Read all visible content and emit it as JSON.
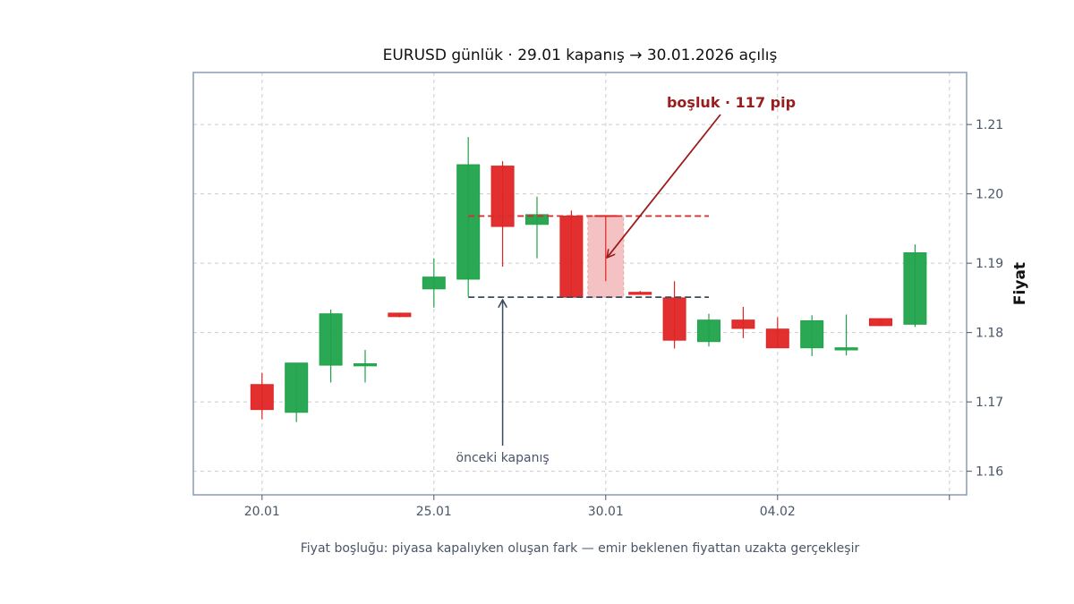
{
  "chart_data": {
    "type": "candlestick",
    "title": "EURUSD günlük · 29.01 kapanış → 30.01.2026 açılış",
    "ylabel": "Fiyat",
    "caption": "Fiyat boşluğu: piyasa kapalıyken oluşan fark — emir beklenen fiyattan uzakta gerçekleşir",
    "ylim": [
      1.1566,
      1.2175
    ],
    "yticks": [
      "1.16",
      "1.17",
      "1.18",
      "1.19",
      "1.20",
      "1.21"
    ],
    "xlim": [
      -1,
      21.5
    ],
    "xticks": [
      {
        "x": 1,
        "label": "20.01"
      },
      {
        "x": 6,
        "label": "25.01"
      },
      {
        "x": 11,
        "label": "30.01"
      },
      {
        "x": 16,
        "label": "04.02"
      },
      {
        "x": 21,
        "label": ""
      }
    ],
    "up_color": "#1fa34a",
    "down_color": "#e02424",
    "candles": [
      {
        "x": 1,
        "open": 1.1725,
        "high": 1.1742,
        "low": 1.1675,
        "close": 1.1689
      },
      {
        "x": 2,
        "open": 1.1685,
        "high": 1.1756,
        "low": 1.1671,
        "close": 1.1756
      },
      {
        "x": 3,
        "open": 1.1753,
        "high": 1.1833,
        "low": 1.1728,
        "close": 1.1827
      },
      {
        "x": 4,
        "open": 1.1752,
        "high": 1.1775,
        "low": 1.1728,
        "close": 1.1755
      },
      {
        "x": 5,
        "open": 1.1828,
        "high": 1.1828,
        "low": 1.1822,
        "close": 1.1823
      },
      {
        "x": 6,
        "open": 1.1863,
        "high": 1.1907,
        "low": 1.1836,
        "close": 1.188
      },
      {
        "x": 7,
        "open": 1.1877,
        "high": 1.2082,
        "low": 1.1852,
        "close": 1.2042
      },
      {
        "x": 8,
        "open": 1.204,
        "high": 1.2047,
        "low": 1.1895,
        "close": 1.1953
      },
      {
        "x": 9,
        "open": 1.1956,
        "high": 1.1996,
        "low": 1.1907,
        "close": 1.197
      },
      {
        "x": 10,
        "open": 1.1968,
        "high": 1.1976,
        "low": 1.185,
        "close": 1.1851
      },
      {
        "x": 11,
        "open": 1.1968,
        "high": 1.1968,
        "low": 1.1874,
        "close": 1.1966,
        "gap_day": true
      },
      {
        "x": 12,
        "open": 1.1858,
        "high": 1.186,
        "low": 1.1855,
        "close": 1.1855
      },
      {
        "x": 13,
        "open": 1.185,
        "high": 1.1874,
        "low": 1.1777,
        "close": 1.1789
      },
      {
        "x": 14,
        "open": 1.1787,
        "high": 1.1827,
        "low": 1.178,
        "close": 1.1818
      },
      {
        "x": 15,
        "open": 1.1818,
        "high": 1.1837,
        "low": 1.1792,
        "close": 1.1806
      },
      {
        "x": 16,
        "open": 1.1805,
        "high": 1.1822,
        "low": 1.1778,
        "close": 1.1778
      },
      {
        "x": 17,
        "open": 1.1778,
        "high": 1.1825,
        "low": 1.1766,
        "close": 1.1817
      },
      {
        "x": 18,
        "open": 1.1775,
        "high": 1.1826,
        "low": 1.1767,
        "close": 1.1778
      },
      {
        "x": 19,
        "open": 1.182,
        "high": 1.182,
        "low": 1.181,
        "close": 1.181
      },
      {
        "x": 20,
        "open": 1.1812,
        "high": 1.1927,
        "low": 1.1808,
        "close": 1.1915
      }
    ],
    "gap": {
      "prev_close": 1.1851,
      "open": 1.1968,
      "x_start": 7,
      "x_end": 14,
      "label": "boşluk · 117 pip",
      "prev_label": "önceki kapanış",
      "color": "#d32f2f",
      "fill": "#f4c2c2",
      "prev_color": "#3b4a5e"
    }
  }
}
